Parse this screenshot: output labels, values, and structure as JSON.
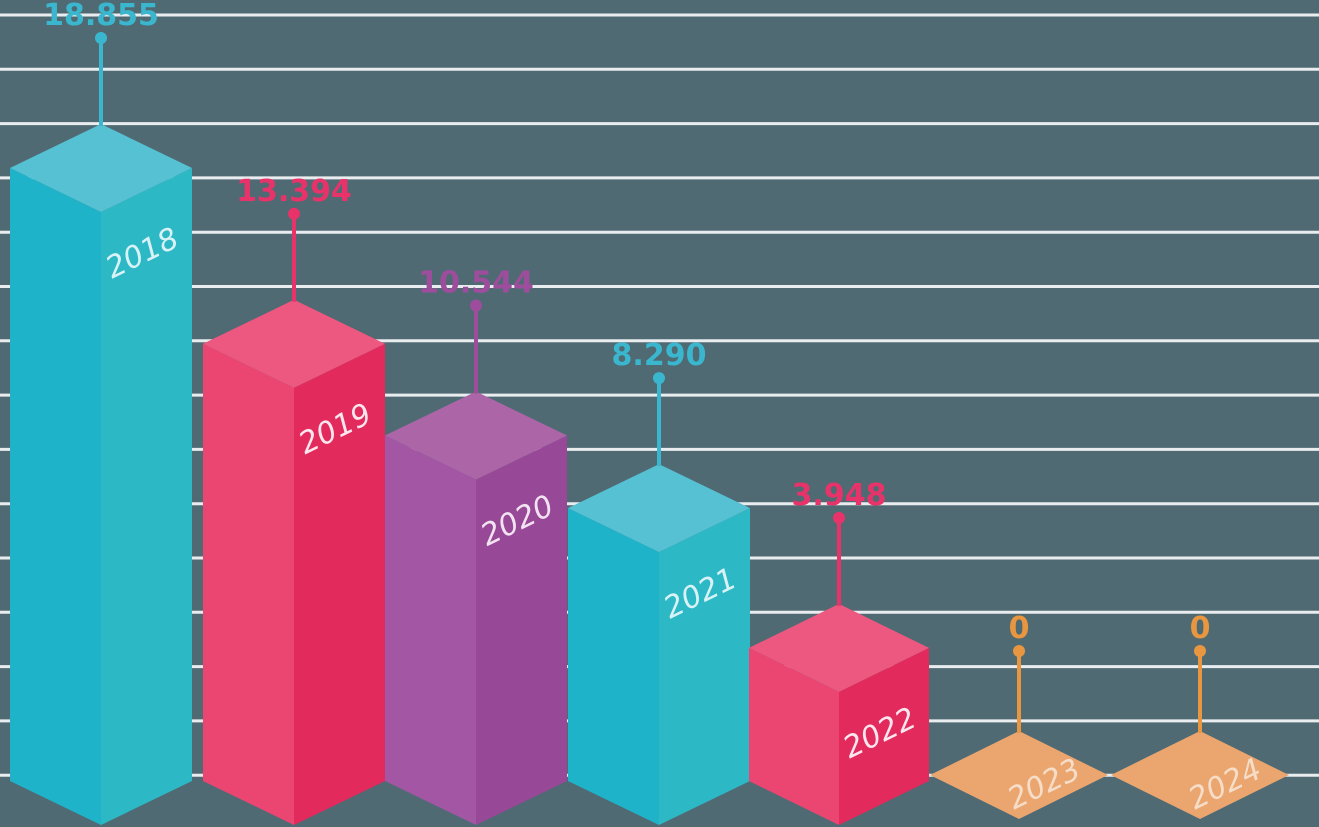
{
  "chart_data": {
    "type": "bar",
    "categories": [
      "2018",
      "2019",
      "2020",
      "2021",
      "2022",
      "2023",
      "2024"
    ],
    "values": [
      18855,
      13394,
      10544,
      8290,
      3948,
      0,
      0
    ],
    "value_labels": [
      "18.855",
      "13.394",
      "10.544",
      "8.290",
      "3.948",
      "0",
      "0"
    ],
    "ylim": [
      0,
      18855
    ],
    "grid": true,
    "title": "",
    "xlabel": "",
    "ylabel": "",
    "colors": [
      {
        "left": "#1fb3ca",
        "right": "#2db8c6",
        "top": "#56c1d2",
        "label": "#3ab7cf",
        "text": "#d8f2f6"
      },
      {
        "left": "#eb4672",
        "right": "#e22a5d",
        "top": "#ec587f",
        "label": "#e8336a",
        "text": "#fde6ee"
      },
      {
        "left": "#a356a4",
        "right": "#974897",
        "top": "#ac66a8",
        "label": "#9e4d9d",
        "text": "#f3e3f2"
      },
      {
        "left": "#1fb3ca",
        "right": "#2db8c6",
        "top": "#56c1d2",
        "label": "#3ab7cf",
        "text": "#d8f2f6"
      },
      {
        "left": "#eb4672",
        "right": "#e22a5d",
        "top": "#ec587f",
        "label": "#e8336a",
        "text": "#fde6ee"
      },
      {
        "left": "#eba56e",
        "right": "#eba56e",
        "top": "#eba56e",
        "label": "#e8963f",
        "text": "#f5ddc8"
      },
      {
        "left": "#eba56e",
        "right": "#eba56e",
        "top": "#eba56e",
        "label": "#e8963f",
        "text": "#f5ddc8"
      }
    ],
    "gridline_color": "#e9edef"
  }
}
